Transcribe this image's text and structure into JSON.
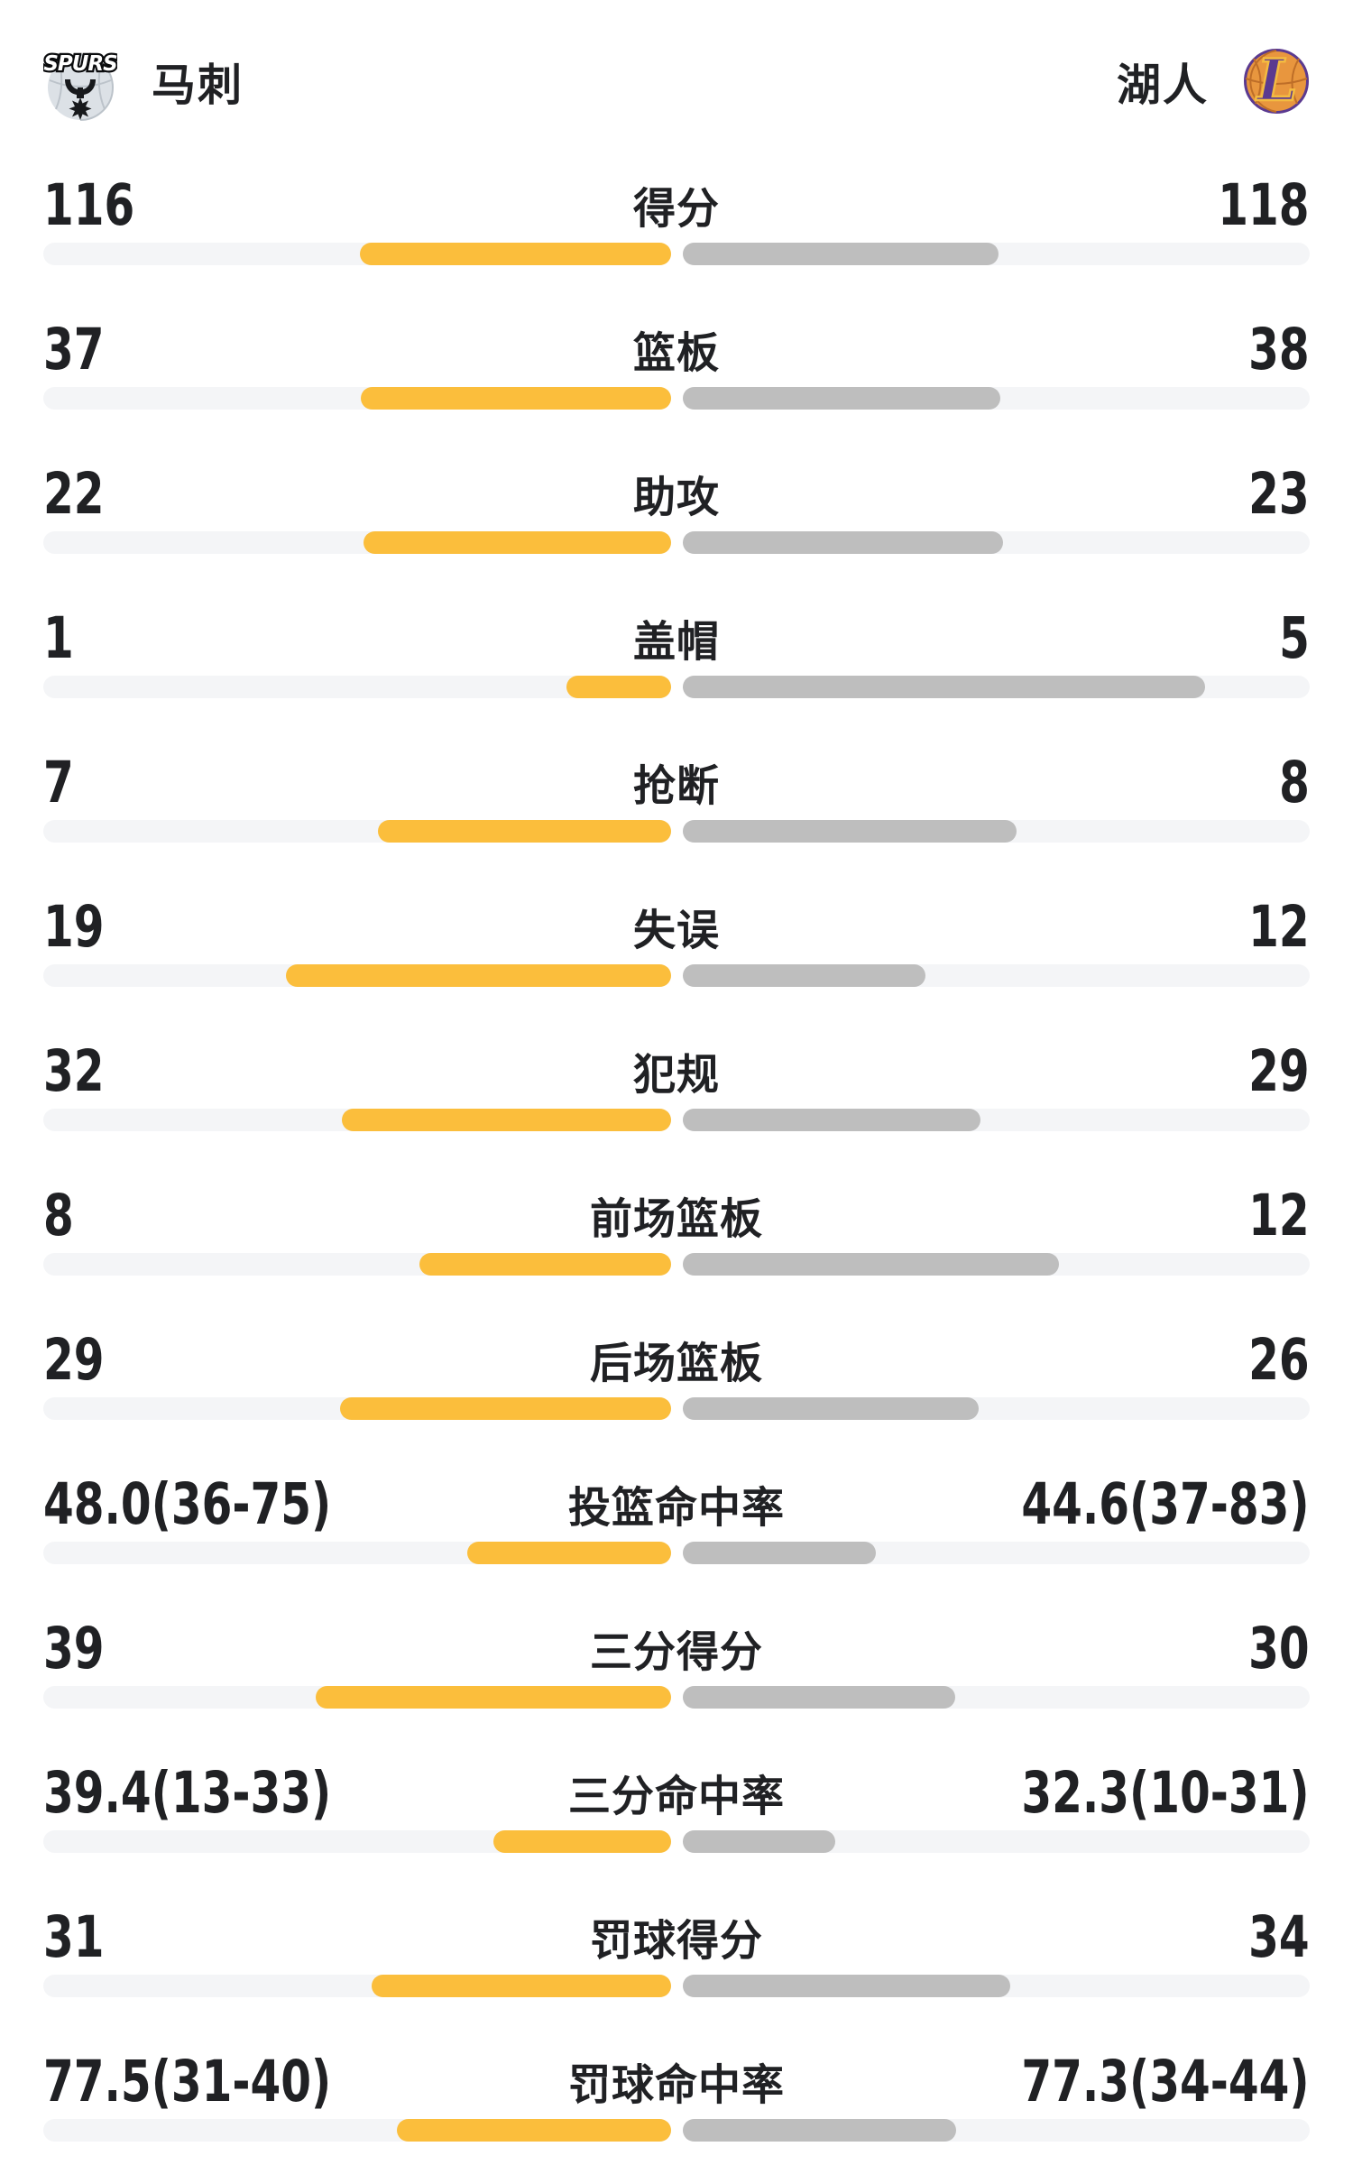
{
  "header": {
    "left_team": "马刺",
    "right_team": "湖人",
    "left_logo": "spurs",
    "right_logo": "lakers"
  },
  "colors": {
    "left_fill": "#FBBE3C",
    "right_fill": "#BEBEBE",
    "track": "#F4F5F7",
    "text": "#202124"
  },
  "chart_data": {
    "type": "bar",
    "layout": "paired horizontal comparison bars, left team yellow anchored to center, right team gray anchored to center",
    "fill_rule": "count rows: value/(left+right); percent rows: value/(value+100)",
    "stats": [
      {
        "label": "得分",
        "left": "116",
        "right": "118",
        "left_value": 116,
        "right_value": 118,
        "kind": "count"
      },
      {
        "label": "篮板",
        "left": "37",
        "right": "38",
        "left_value": 37,
        "right_value": 38,
        "kind": "count"
      },
      {
        "label": "助攻",
        "left": "22",
        "right": "23",
        "left_value": 22,
        "right_value": 23,
        "kind": "count"
      },
      {
        "label": "盖帽",
        "left": "1",
        "right": "5",
        "left_value": 1,
        "right_value": 5,
        "kind": "count"
      },
      {
        "label": "抢断",
        "left": "7",
        "right": "8",
        "left_value": 7,
        "right_value": 8,
        "kind": "count"
      },
      {
        "label": "失误",
        "left": "19",
        "right": "12",
        "left_value": 19,
        "right_value": 12,
        "kind": "count"
      },
      {
        "label": "犯规",
        "left": "32",
        "right": "29",
        "left_value": 32,
        "right_value": 29,
        "kind": "count"
      },
      {
        "label": "前场篮板",
        "left": "8",
        "right": "12",
        "left_value": 8,
        "right_value": 12,
        "kind": "count"
      },
      {
        "label": "后场篮板",
        "left": "29",
        "right": "26",
        "left_value": 29,
        "right_value": 26,
        "kind": "count"
      },
      {
        "label": "投篮命中率",
        "left": "48.0(36-75)",
        "right": "44.6(37-83)",
        "left_value": 48.0,
        "right_value": 44.6,
        "kind": "percent"
      },
      {
        "label": "三分得分",
        "left": "39",
        "right": "30",
        "left_value": 39,
        "right_value": 30,
        "kind": "count"
      },
      {
        "label": "三分命中率",
        "left": "39.4(13-33)",
        "right": "32.3(10-31)",
        "left_value": 39.4,
        "right_value": 32.3,
        "kind": "percent"
      },
      {
        "label": "罚球得分",
        "left": "31",
        "right": "34",
        "left_value": 31,
        "right_value": 34,
        "kind": "count"
      },
      {
        "label": "罚球命中率",
        "left": "77.5(31-40)",
        "right": "77.3(34-44)",
        "left_value": 77.5,
        "right_value": 77.3,
        "kind": "percent"
      }
    ]
  }
}
